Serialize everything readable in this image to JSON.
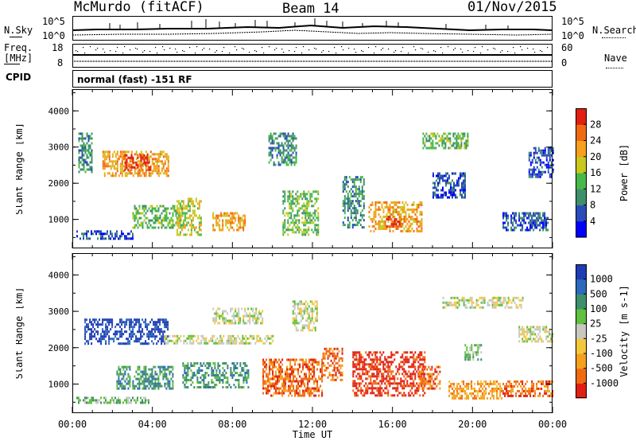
{
  "header": {
    "station": "McMurdo (fitACF)",
    "beam": "Beam 14",
    "date": "01/Nov/2015"
  },
  "noise_panel": {
    "left_label": "N.Sky",
    "right_label": "N.Search",
    "left_ticks": [
      "10^5",
      "10^0"
    ],
    "right_ticks": [
      "10^5",
      "10^0"
    ]
  },
  "freq_panel": {
    "left_label_line1": "Freq.",
    "left_label_line2": "[MHz]",
    "right_label": "Nave",
    "left_ticks": [
      "18",
      "8"
    ],
    "right_ticks": [
      "60",
      "0"
    ]
  },
  "cpid": {
    "label": "CPID",
    "value": "normal (fast) -151 RF"
  },
  "chart_data": [
    {
      "type": "heatmap",
      "title": "",
      "xlabel": "Time UT",
      "ylabel": "Slant Range [km]",
      "x_ticks": [
        "00:00",
        "04:00",
        "08:00",
        "12:00",
        "16:00",
        "20:00",
        "00:00"
      ],
      "y_ticks": [
        "1000",
        "2000",
        "3000",
        "4000"
      ],
      "ylim": [
        200,
        4600
      ],
      "colorbar_label": "Power [dB]",
      "colorbar_ticks": [
        "4",
        "8",
        "12",
        "16",
        "20",
        "24",
        "28"
      ],
      "colors": [
        "#0000ff",
        "#2a4bb8",
        "#3f8f6a",
        "#48b84a",
        "#c8c81e",
        "#f5a01e",
        "#f06a14",
        "#e02010"
      ],
      "regions": [
        {
          "t_start": 0.3,
          "t_end": 1.0,
          "r_start": 2300,
          "r_end": 3400,
          "level": 2
        },
        {
          "t_start": 1.5,
          "t_end": 4.8,
          "r_start": 2200,
          "r_end": 2900,
          "level": 5
        },
        {
          "t_start": 2.6,
          "t_end": 3.9,
          "r_start": 2400,
          "r_end": 2800,
          "level": 7
        },
        {
          "t_start": 0.2,
          "t_end": 3.0,
          "r_start": 500,
          "r_end": 700,
          "level": 1
        },
        {
          "t_start": 3.0,
          "t_end": 5.5,
          "r_start": 800,
          "r_end": 1400,
          "level": 3
        },
        {
          "t_start": 5.2,
          "t_end": 6.4,
          "r_start": 600,
          "r_end": 1600,
          "level": 4
        },
        {
          "t_start": 7.0,
          "t_end": 8.6,
          "r_start": 700,
          "r_end": 1200,
          "level": 5
        },
        {
          "t_start": 10.5,
          "t_end": 12.3,
          "r_start": 600,
          "r_end": 1800,
          "level": 3
        },
        {
          "t_start": 13.5,
          "t_end": 14.6,
          "r_start": 800,
          "r_end": 2200,
          "level": 2
        },
        {
          "t_start": 14.8,
          "t_end": 17.5,
          "r_start": 700,
          "r_end": 1500,
          "level": 5
        },
        {
          "t_start": 15.6,
          "t_end": 16.4,
          "r_start": 800,
          "r_end": 1100,
          "level": 7
        },
        {
          "t_start": 18.0,
          "t_end": 19.6,
          "r_start": 1600,
          "r_end": 2300,
          "level": 1
        },
        {
          "t_start": 21.5,
          "t_end": 23.8,
          "r_start": 700,
          "r_end": 1200,
          "level": 1
        },
        {
          "t_start": 22.8,
          "t_end": 24.0,
          "r_start": 2200,
          "r_end": 3000,
          "level": 1
        },
        {
          "t_start": 9.8,
          "t_end": 11.2,
          "r_start": 2500,
          "r_end": 3400,
          "level": 2
        },
        {
          "t_start": 17.5,
          "t_end": 19.8,
          "r_start": 3000,
          "r_end": 3400,
          "level": 3
        }
      ]
    },
    {
      "type": "heatmap",
      "title": "",
      "xlabel": "Time UT",
      "ylabel": "Slant Range [km]",
      "x_ticks": [
        "00:00",
        "04:00",
        "08:00",
        "12:00",
        "16:00",
        "20:00",
        "00:00"
      ],
      "y_ticks": [
        "1000",
        "2000",
        "3000",
        "4000"
      ],
      "ylim": [
        200,
        4600
      ],
      "colorbar_label": "Velocity [m s-1]",
      "colorbar_ticks": [
        "1000",
        "500",
        "100",
        "25",
        "-25",
        "-100",
        "-500",
        "-1000"
      ],
      "colors": [
        "#1e3cb4",
        "#2c6abc",
        "#3f8f6a",
        "#60c040",
        "#c8c8c0",
        "#f5c83c",
        "#f5a01e",
        "#f06a14",
        "#e02010"
      ],
      "regions": [
        {
          "t_start": 0.6,
          "t_end": 4.8,
          "r_start": 2100,
          "r_end": 2800,
          "level": 0
        },
        {
          "t_start": 0.2,
          "t_end": 3.8,
          "r_start": 500,
          "r_end": 650,
          "level": 3
        },
        {
          "t_start": 2.2,
          "t_end": 5.0,
          "r_start": 900,
          "r_end": 1500,
          "level": 2
        },
        {
          "t_start": 5.5,
          "t_end": 8.8,
          "r_start": 900,
          "r_end": 1600,
          "level": 2
        },
        {
          "t_start": 4.5,
          "t_end": 10.0,
          "r_start": 2150,
          "r_end": 2350,
          "level": 4
        },
        {
          "t_start": 7.0,
          "t_end": 9.5,
          "r_start": 2700,
          "r_end": 3100,
          "level": 4
        },
        {
          "t_start": 9.5,
          "t_end": 12.5,
          "r_start": 700,
          "r_end": 1700,
          "level": 7
        },
        {
          "t_start": 12.5,
          "t_end": 13.5,
          "r_start": 1100,
          "r_end": 2000,
          "level": 7
        },
        {
          "t_start": 14.0,
          "t_end": 17.6,
          "r_start": 700,
          "r_end": 1900,
          "level": 8
        },
        {
          "t_start": 17.3,
          "t_end": 18.4,
          "r_start": 900,
          "r_end": 1500,
          "level": 7
        },
        {
          "t_start": 18.8,
          "t_end": 21.5,
          "r_start": 600,
          "r_end": 1100,
          "level": 6
        },
        {
          "t_start": 21.5,
          "t_end": 24.0,
          "r_start": 700,
          "r_end": 1100,
          "level": 7
        },
        {
          "t_start": 18.5,
          "t_end": 22.5,
          "r_start": 3100,
          "r_end": 3400,
          "level": 4
        },
        {
          "t_start": 22.3,
          "t_end": 24.0,
          "r_start": 2200,
          "r_end": 2600,
          "level": 4
        },
        {
          "t_start": 19.6,
          "t_end": 20.4,
          "r_start": 1700,
          "r_end": 2100,
          "level": 3
        },
        {
          "t_start": 11.0,
          "t_end": 12.2,
          "r_start": 2500,
          "r_end": 3300,
          "level": 4
        }
      ]
    }
  ]
}
